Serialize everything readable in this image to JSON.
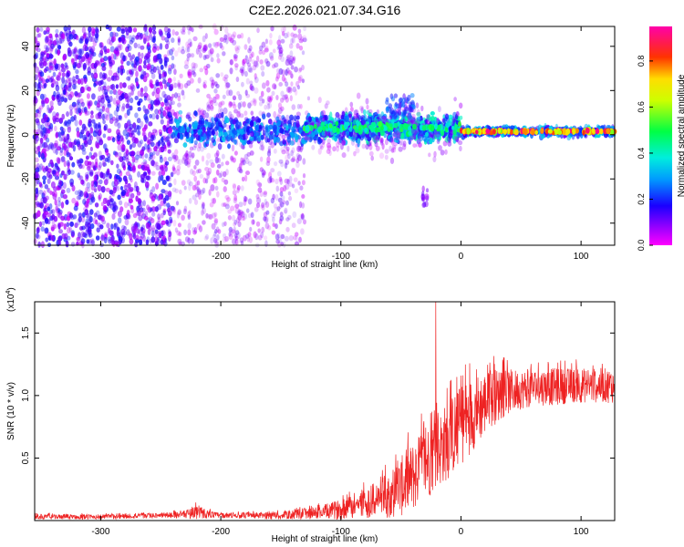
{
  "title": "C2E2.2026.021.07.34.G16",
  "colors": {
    "axis": "#000000",
    "snr_line": "#ee2222",
    "scatter_low": "#c8a8f8",
    "scatter_mid": "#7722ee",
    "scatter_dense": "#3a10ff"
  },
  "chart_data": [
    {
      "type": "scatter",
      "name": "spectrogram",
      "xlabel": "Height of straight line (km)",
      "ylabel": "Frequency (Hz)",
      "xlim": [
        -355,
        128
      ],
      "ylim": [
        -50,
        49
      ],
      "xticks": [
        -300,
        -200,
        -100,
        0,
        100
      ],
      "yticks": [
        -40,
        -20,
        0,
        20,
        40
      ],
      "grid": false,
      "colorbar": {
        "label": "Normalized spectral amplitude",
        "range": [
          0.0,
          0.95
        ],
        "ticks": [
          "0.0",
          "0.2",
          "0.4",
          "0.6",
          "0.8"
        ],
        "colormap": "rainbow: magenta(0) - blue - cyan - green - yellow - red - magenta(max)"
      },
      "regions": [
        {
          "x_range": [
            -355,
            -240
          ],
          "freq_range": [
            -50,
            49
          ],
          "amplitude": "0.05-0.25",
          "density": "dense"
        },
        {
          "x_range": [
            -240,
            -130
          ],
          "freq_range": [
            -50,
            49
          ],
          "amplitude": "0.02-0.15",
          "density": "sparse",
          "center_band_amplitude": "0.2-0.5"
        },
        {
          "x_range": [
            -130,
            0
          ],
          "freq_range": [
            -12,
            22
          ],
          "amplitude": "0.2-0.55",
          "density": "band"
        },
        {
          "x_range": [
            0,
            128
          ],
          "freq_range": [
            -4,
            6
          ],
          "amplitude": "0.45-0.95",
          "density": "narrow band near 1.5 Hz"
        }
      ],
      "features": [
        {
          "x": -30,
          "freq": -28,
          "note": "isolated low-frequency blob"
        },
        {
          "x": -50,
          "freq": 15,
          "note": "upward spread of band"
        }
      ]
    },
    {
      "type": "line",
      "name": "snr",
      "xlabel": "Height of straight line (km)",
      "ylabel": "SNR (10 * v/v)",
      "y_multiplier": "(x10",
      "y_multiplier_exp": "4",
      "y_multiplier_close": ")",
      "xlim": [
        -355,
        128
      ],
      "ylim": [
        0.0,
        1.75
      ],
      "xticks": [
        -300,
        -200,
        -100,
        0,
        100
      ],
      "yticks": [
        "0.5",
        "1.0",
        "1.5"
      ],
      "ytick_values": [
        0.5,
        1.0,
        1.5
      ],
      "grid": false,
      "series": [
        {
          "name": "SNR",
          "units": "x10^4 v/v",
          "x": [
            -355,
            -300,
            -250,
            -230,
            -220,
            -210,
            -200,
            -150,
            -120,
            -100,
            -80,
            -60,
            -50,
            -40,
            -30,
            -20,
            -10,
            0,
            10,
            20,
            30,
            40,
            50,
            60,
            70,
            80,
            90,
            100,
            110,
            120,
            128
          ],
          "y_center": [
            0.03,
            0.03,
            0.04,
            0.05,
            0.07,
            0.05,
            0.04,
            0.04,
            0.06,
            0.09,
            0.14,
            0.2,
            0.27,
            0.35,
            0.45,
            0.55,
            0.65,
            0.76,
            0.86,
            0.94,
            1.0,
            1.03,
            1.05,
            1.06,
            1.07,
            1.07,
            1.08,
            1.08,
            1.08,
            1.08,
            1.08
          ],
          "y_spread": [
            0.02,
            0.02,
            0.02,
            0.03,
            0.06,
            0.03,
            0.02,
            0.03,
            0.05,
            0.08,
            0.12,
            0.18,
            0.24,
            0.28,
            0.3,
            0.3,
            0.32,
            0.32,
            0.3,
            0.26,
            0.22,
            0.18,
            0.16,
            0.15,
            0.15,
            0.15,
            0.14,
            0.14,
            0.14,
            0.14,
            0.14
          ]
        }
      ],
      "annotations": [
        {
          "x": -21,
          "y": 1.75,
          "note": "spike reaching top of axis"
        }
      ]
    }
  ]
}
